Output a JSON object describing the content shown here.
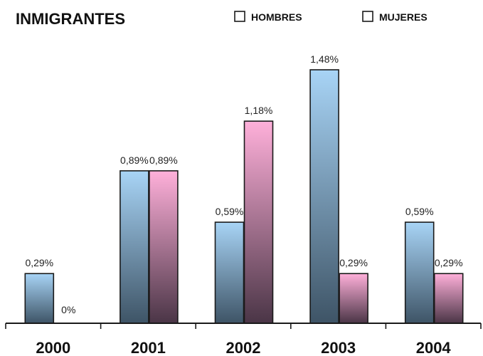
{
  "title": "INMIGRANTES",
  "legend": [
    {
      "label": "HOMBRES",
      "color": "#8fc6f0"
    },
    {
      "label": "MUJERES",
      "color": "#f3a5cf"
    }
  ],
  "colors": {
    "hombres_top": "#a8d4f6",
    "hombres_bottom": "#3e5466",
    "mujeres_top": "#ffb0da",
    "mujeres_bottom": "#4a3546",
    "outline": "#1a1a1a"
  },
  "chart_data": {
    "type": "bar",
    "categories": [
      "2000",
      "2001",
      "2002",
      "2003",
      "2004"
    ],
    "series": [
      {
        "name": "HOMBRES",
        "values": [
          0.29,
          0.89,
          0.59,
          1.48,
          0.59
        ],
        "labels": [
          "0,29%",
          "0,89%",
          "0,59%",
          "1,48%",
          "0,59%"
        ]
      },
      {
        "name": "MUJERES",
        "values": [
          0,
          0.89,
          1.18,
          0.29,
          0.29
        ],
        "labels": [
          "0%",
          "0,89%",
          "1,18%",
          "0,29%",
          "0,29%"
        ]
      }
    ],
    "title": "INMIGRANTES",
    "xlabel": "",
    "ylabel": "",
    "ylim": [
      0,
      1.48
    ],
    "grid": false,
    "legend_position": "top-right"
  }
}
